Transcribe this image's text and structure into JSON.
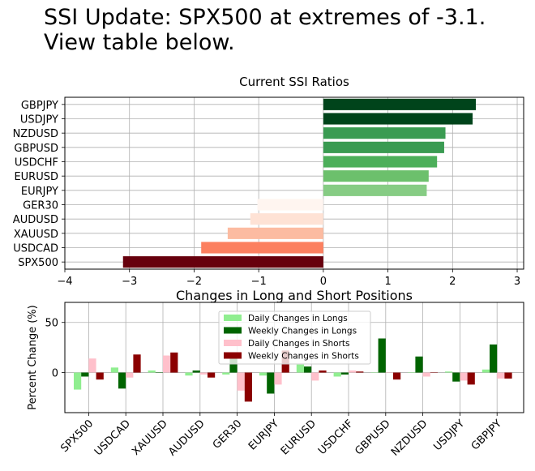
{
  "headline": {
    "line1": "SSI Update: SPX500 at extremes of -3.1.",
    "line2": "View table below."
  },
  "chart_data": [
    {
      "type": "bar",
      "orientation": "horizontal",
      "title": "Current SSI Ratios",
      "xlabel": "",
      "ylabel": "",
      "xlim": [
        -4,
        3.1
      ],
      "xticks": [
        -4,
        -3,
        -2,
        -1,
        0,
        1,
        2,
        3
      ],
      "grid": true,
      "categories": [
        "GBPJPY",
        "USDJPY",
        "NZDUSD",
        "GBPUSD",
        "USDCHF",
        "EURUSD",
        "EURJPY",
        "GER30",
        "AUDUSD",
        "XAUUSD",
        "USDCAD",
        "SPX500"
      ],
      "values": [
        2.36,
        2.31,
        1.89,
        1.87,
        1.76,
        1.63,
        1.6,
        -1.02,
        -1.13,
        -1.48,
        -1.89,
        -3.1
      ],
      "colors": [
        "#00441b",
        "#00441b",
        "#3a9b52",
        "#3a9b52",
        "#4caf5a",
        "#6cc06c",
        "#86cc84",
        "#fff5f0",
        "#fee2d5",
        "#fcbba1",
        "#fc8060",
        "#67000d"
      ]
    },
    {
      "type": "bar",
      "title": "Changes in Long and Short Positions",
      "xlabel": "",
      "ylabel": "Percent Change (%)",
      "ylim": [
        -40,
        70
      ],
      "yticks": [
        0,
        50
      ],
      "grid": true,
      "legend_position": "top-center",
      "categories": [
        "SPX500",
        "USDCAD",
        "XAUUSD",
        "AUDUSD",
        "GER30",
        "EURJPY",
        "EURUSD",
        "USDCHF",
        "GBPUSD",
        "NZDUSD",
        "USDJPY",
        "GBPJPY"
      ],
      "series": [
        {
          "name": "Daily Changes in Longs",
          "color": "#90ee90",
          "values": [
            -17,
            5,
            2,
            -3,
            -2,
            -3,
            8,
            -4,
            0,
            0,
            1,
            3
          ]
        },
        {
          "name": "Weekly Changes in Longs",
          "color": "#006400",
          "values": [
            -4,
            -16,
            0,
            2,
            18,
            -21,
            6,
            -2,
            34,
            16,
            -9,
            28
          ]
        },
        {
          "name": "Daily Changes in Shorts",
          "color": "#ffc0cb",
          "values": [
            14,
            -5,
            17,
            -2,
            -18,
            -12,
            -8,
            2,
            0,
            -4,
            -8,
            -6
          ]
        },
        {
          "name": "Weekly Changes in Shorts",
          "color": "#8b0000",
          "values": [
            -7,
            18,
            20,
            -5,
            -29,
            22,
            2,
            1,
            -7,
            0,
            -12,
            -6
          ]
        }
      ]
    }
  ]
}
